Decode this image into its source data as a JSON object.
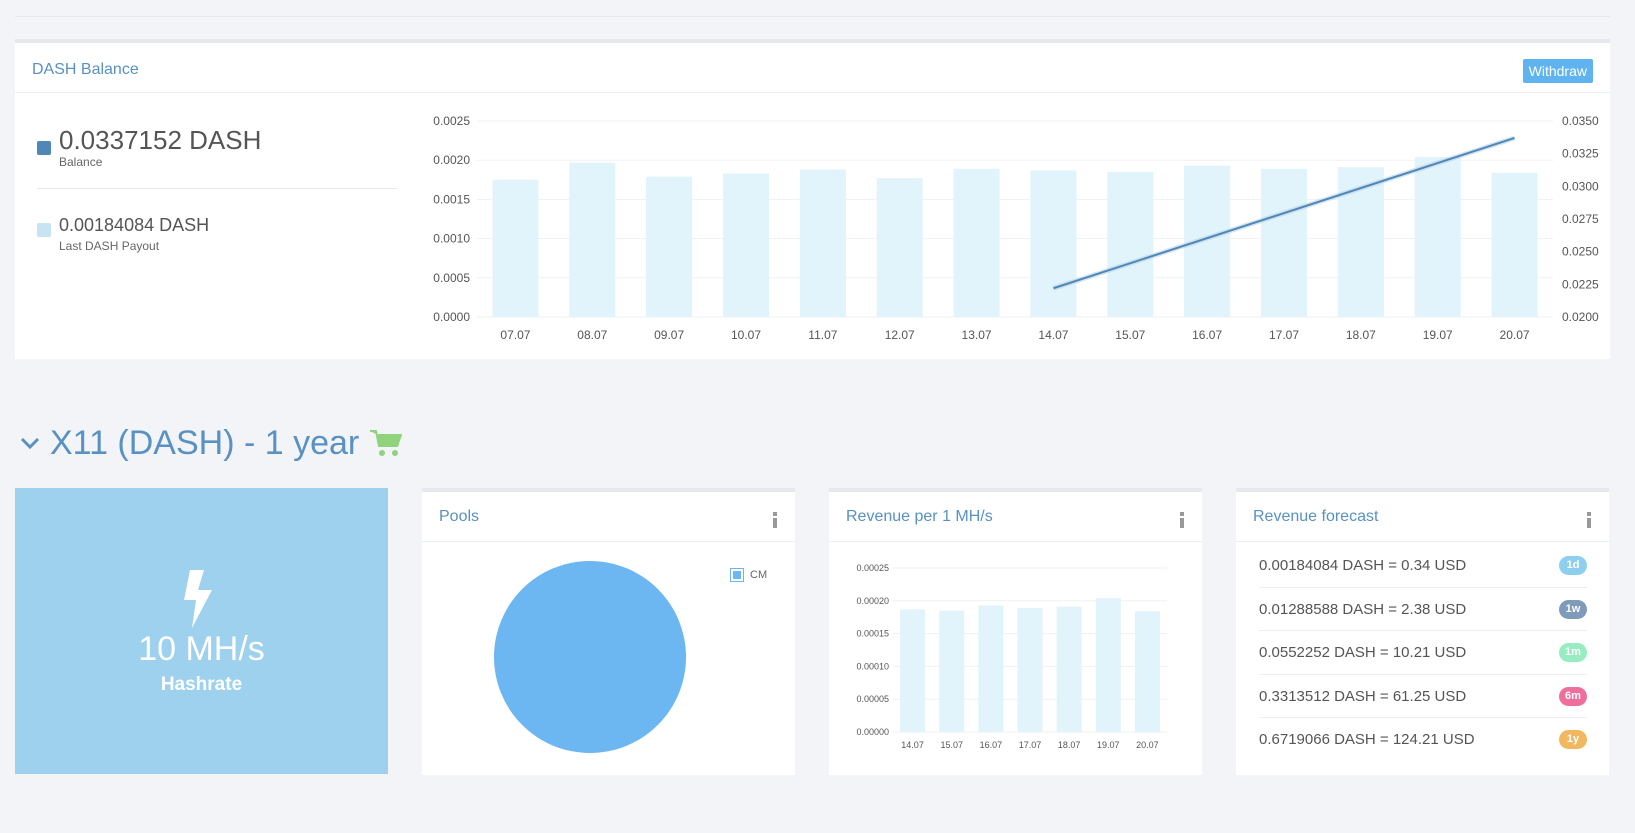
{
  "balance_panel": {
    "title": "DASH Balance",
    "withdraw_label": "Withdraw",
    "balance_value": "0.0337152 DASH",
    "balance_label": "Balance",
    "last_payout_value": "0.00184084 DASH",
    "last_payout_label": "Last DASH Payout",
    "colors": {
      "balance": "#4f87b9",
      "payout": "#c6e4f3"
    }
  },
  "section": {
    "title": "X11 (DASH) - 1 year",
    "chevron_icon": "chevron-down-icon",
    "cart_icon": "cart-icon"
  },
  "hashrate": {
    "value": "10 MH/s",
    "label": "Hashrate",
    "icon": "lightning-bolt-icon"
  },
  "pools": {
    "title": "Pools",
    "legend_label": "CM"
  },
  "revenue_per": {
    "title": "Revenue per 1 MH/s"
  },
  "forecast": {
    "title": "Revenue forecast",
    "rows": [
      {
        "text": "0.00184084 DASH = 0.34 USD",
        "badge": "1d",
        "color": "#8fcfee"
      },
      {
        "text": "0.01288588 DASH = 2.38 USD",
        "badge": "1w",
        "color": "#7e9cb9"
      },
      {
        "text": "0.0552252 DASH = 10.21 USD",
        "badge": "1m",
        "color": "#97ecc2"
      },
      {
        "text": "0.3313512 DASH = 61.25 USD",
        "badge": "6m",
        "color": "#ef6f9c"
      },
      {
        "text": "0.6719066 DASH = 124.21 USD",
        "badge": "1y",
        "color": "#f2b860"
      }
    ]
  },
  "chart_data": [
    {
      "type": "bar",
      "categories": [
        "07.07",
        "08.07",
        "09.07",
        "10.07",
        "11.07",
        "12.07",
        "13.07",
        "14.07",
        "15.07",
        "16.07",
        "17.07",
        "18.07",
        "19.07",
        "20.07"
      ],
      "series": [
        {
          "values": [
            0.00175,
            0.00197,
            0.00179,
            0.00183,
            0.00188,
            0.00177,
            0.00189,
            0.00187,
            0.00185,
            0.00193,
            0.00189,
            0.00191,
            0.00204,
            0.00184
          ],
          "color": "#e1f3fb"
        },
        {
          "type": "line",
          "axis": "right",
          "x": [
            "14.07",
            "20.07"
          ],
          "values": [
            0.0222,
            0.0337
          ],
          "color": "#4f87b9"
        }
      ],
      "ylim": [
        0,
        0.0025
      ],
      "y_ticks": [
        "0.0000",
        "0.0005",
        "0.0010",
        "0.0015",
        "0.0020",
        "0.0025"
      ],
      "y2lim": [
        0.02,
        0.035
      ],
      "y2_ticks": [
        "0.0200",
        "0.0225",
        "0.0250",
        "0.0275",
        "0.0300",
        "0.0325",
        "0.0350"
      ],
      "grid": true
    },
    {
      "type": "pie",
      "labels": [
        "CM"
      ],
      "values": [
        100
      ],
      "colors": [
        "#6cb6f2"
      ],
      "legend": "top-right"
    },
    {
      "type": "bar",
      "categories": [
        "14.07",
        "15.07",
        "16.07",
        "17.07",
        "18.07",
        "19.07",
        "20.07"
      ],
      "values": [
        0.000187,
        0.000185,
        0.000193,
        0.000189,
        0.000191,
        0.000204,
        0.000184
      ],
      "ylim": [
        0,
        0.00025
      ],
      "y_ticks": [
        "0.00000",
        "0.00005",
        "0.00010",
        "0.00015",
        "0.00020",
        "0.00025"
      ],
      "color": "#e1f3fb",
      "grid": true
    }
  ]
}
